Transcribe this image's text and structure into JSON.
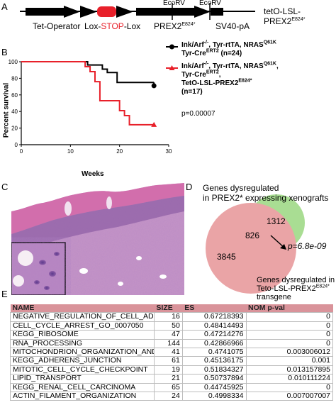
{
  "panel_labels": {
    "a": "A",
    "b": "B",
    "c": "C",
    "d": "D",
    "e": "E"
  },
  "panel_a": {
    "construct_name": "tetO-LSL-PREX2",
    "construct_sup": "E824*",
    "ecorv_1": "EcoRV",
    "ecorv_2": "EcoRV",
    "tet_operator": "Tet-Operator",
    "lox_1": "Lox-",
    "stop": "STOP",
    "lox_2": "-Lox",
    "prex2": "PREX2",
    "prex2_sup": "E824*",
    "sv40": "SV40-pA",
    "stop_color": "#e8202a"
  },
  "panel_b": {
    "ylabel": "Percent survival",
    "xlabel": "Weeks",
    "pvalue": "p=0.00007",
    "legend": {
      "black_l1a": "Ink/Arf",
      "black_l1sup1": "-/-",
      "black_l1b": ", Tyr-rtTA, NRAS",
      "black_l1sup2": "Q61K",
      "black_l2a": "Tyr-Cre",
      "black_l2sup": "ERT2",
      "black_l2b": " (n=24)",
      "red_l1a": "Ink/Arf",
      "red_l1sup1": "-/-",
      "red_l1b": ", Tyr-rtTA, NRAS",
      "red_l1sup2": "Q61K",
      "red_l1c": ",",
      "red_l2a": "Tyr-Cre",
      "red_l2sup": "ERT2",
      "red_l2b": ",",
      "red_l3a": "TetO-LSL-PREX2",
      "red_l3sup": "E824*",
      "red_l4": "(n=17)"
    }
  },
  "panel_d": {
    "top_label_l1": "Genes dysregulated",
    "top_label_l2": "in PREX2* expressing xenografts",
    "green_only": "1312",
    "overlap": "826",
    "red_only": "3845",
    "pvalue": "p=6.8e-09",
    "bottom_label_l1": "Genes dysregulated in",
    "bottom_label_l2a": "Teto-LSL-PREX2",
    "bottom_label_l2sup": "E824*",
    "bottom_label_l3": "transgene",
    "green_color": "#a9dd93",
    "red_color": "#eaa4a6"
  },
  "chart_data": {
    "type": "line",
    "title": "",
    "xlabel": "Weeks",
    "ylabel": "Percent survival",
    "xlim": [
      0,
      30
    ],
    "ylim": [
      0,
      100
    ],
    "xticks": [
      "0",
      "10",
      "20",
      "30"
    ],
    "yticks": [
      "0",
      "20",
      "40",
      "60",
      "80",
      "100"
    ],
    "series": [
      {
        "color": "#000000",
        "marker": "circle",
        "steps": [
          [
            0,
            100
          ],
          [
            12.5,
            100
          ],
          [
            13.5,
            96
          ],
          [
            16.5,
            91
          ],
          [
            17.5,
            87
          ],
          [
            19.5,
            75
          ],
          [
            27,
            75
          ]
        ],
        "end": [
          27,
          71
        ]
      },
      {
        "color": "#e8202a",
        "marker": "triangle",
        "steps": [
          [
            0,
            100
          ],
          [
            12,
            100
          ],
          [
            13,
            94
          ],
          [
            14,
            88
          ],
          [
            15,
            76
          ],
          [
            16,
            53
          ],
          [
            20,
            41
          ],
          [
            21,
            35
          ],
          [
            22,
            24
          ],
          [
            27,
            24
          ]
        ],
        "end": [
          27,
          24
        ]
      }
    ]
  },
  "table": {
    "headers": [
      "NAME",
      "SIZE",
      "ES",
      "NOM p-val"
    ],
    "rows": [
      [
        "NEGATIVE_REGULATION_OF_CELL_ADHESION",
        "16",
        "0.67218393",
        "0"
      ],
      [
        "CELL_CYCLE_ARREST_GO_0007050",
        "50",
        "0.48414493",
        "0"
      ],
      [
        "KEGG_RIBOSOME",
        "47",
        "0.47214276",
        "0"
      ],
      [
        "RNA_PROCESSING",
        "144",
        "0.42866966",
        "0"
      ],
      [
        "MITOCHONDRION_ORGANIZATION_AND_BIOGEN",
        "41",
        "0.4741075",
        "0.003006012"
      ],
      [
        "KEGG_ADHERENS_JUNCTION",
        "61",
        "0.45136175",
        "0.001"
      ],
      [
        "MITOTIC_CELL_CYCLE_CHECKPOINT",
        "19",
        "0.51834327",
        "0.013157895"
      ],
      [
        "LIPID_TRANSPORT",
        "21",
        "0.50737894",
        "0.010111224"
      ],
      [
        "KEGG_RENAL_CELL_CARCINOMA",
        "65",
        "0.44745925",
        "0"
      ],
      [
        "ACTIN_FILAMENT_ORGANIZATION",
        "24",
        "0.4998334",
        "0.007007007"
      ]
    ]
  }
}
